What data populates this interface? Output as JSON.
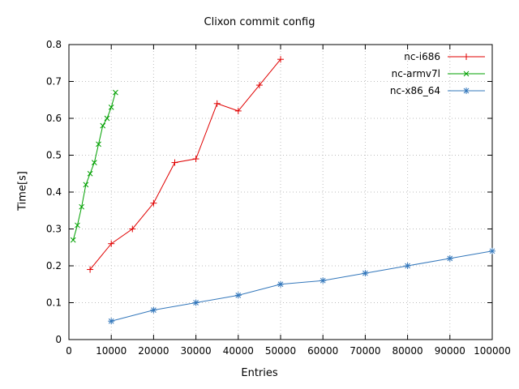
{
  "chart_data": {
    "type": "line",
    "title": "Clixon commit config",
    "xlabel": "Entries",
    "ylabel": "Time[s]",
    "xlim": [
      0,
      100000
    ],
    "ylim": [
      0,
      0.8
    ],
    "x_ticks": [
      0,
      10000,
      20000,
      30000,
      40000,
      50000,
      60000,
      70000,
      80000,
      90000,
      100000
    ],
    "y_ticks": [
      0,
      0.1,
      0.2,
      0.3,
      0.4,
      0.5,
      0.6,
      0.7,
      0.8
    ],
    "grid": true,
    "legend_position": "top-right-inside",
    "series": [
      {
        "name": "nc-i686",
        "color": "#e00000",
        "marker": "plus",
        "x": [
          5000,
          10000,
          15000,
          20000,
          25000,
          30000,
          35000,
          40000,
          45000,
          50000
        ],
        "y": [
          0.19,
          0.26,
          0.3,
          0.37,
          0.48,
          0.49,
          0.64,
          0.62,
          0.69,
          0.76
        ]
      },
      {
        "name": "nc-armv7l",
        "color": "#00a000",
        "marker": "x",
        "x": [
          1000,
          2000,
          3000,
          4000,
          5000,
          6000,
          7000,
          8000,
          9000,
          10000,
          11000
        ],
        "y": [
          0.27,
          0.31,
          0.36,
          0.42,
          0.45,
          0.48,
          0.53,
          0.58,
          0.6,
          0.63,
          0.67
        ]
      },
      {
        "name": "nc-x86_64",
        "color": "#3377bb",
        "marker": "star",
        "x": [
          10000,
          20000,
          30000,
          40000,
          50000,
          60000,
          70000,
          80000,
          90000,
          100000
        ],
        "y": [
          0.05,
          0.08,
          0.1,
          0.12,
          0.15,
          0.16,
          0.18,
          0.2,
          0.22,
          0.24
        ]
      }
    ]
  }
}
